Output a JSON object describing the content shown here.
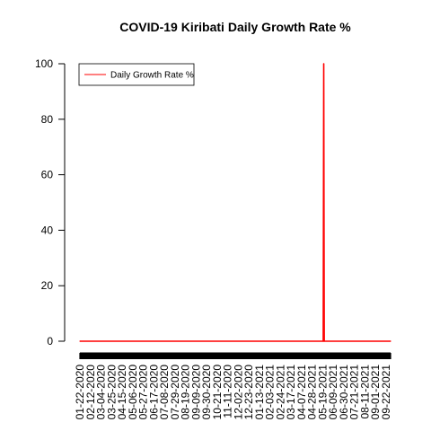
{
  "chart_data": {
    "type": "line",
    "title": "COVID-19 Kiribati Daily Growth Rate %",
    "xlabel": "",
    "ylabel": "",
    "ylim": [
      0,
      100
    ],
    "y_ticks": [
      0,
      20,
      40,
      60,
      80,
      100
    ],
    "x_range": [
      "2020-01-22",
      "2021-10-01"
    ],
    "x_tick_labels": [
      "01-22-2020",
      "02-12-2020",
      "03-04-2020",
      "03-25-2020",
      "04-15-2020",
      "05-06-2020",
      "05-27-2020",
      "06-17-2020",
      "07-08-2020",
      "07-29-2020",
      "08-19-2020",
      "09-09-2020",
      "09-30-2020",
      "10-21-2020",
      "11-11-2020",
      "12-02-2020",
      "12-23-2020",
      "01-13-2021",
      "02-03-2021",
      "02-24-2021",
      "03-17-2021",
      "04-07-2021",
      "04-28-2021",
      "05-19-2021",
      "06-09-2021",
      "06-30-2021",
      "07-21-2021",
      "08-11-2021",
      "09-01-2021",
      "09-22-2021"
    ],
    "grid": false,
    "legend_position": "top-left",
    "colors": {
      "series": "#ff0000",
      "axis": "#000000"
    },
    "series": [
      {
        "name": "Daily Growth Rate %",
        "points": [
          {
            "x": "2020-01-22",
            "y": 0
          },
          {
            "x": "2021-05-20",
            "y": 0
          },
          {
            "x": "2021-05-21",
            "y": 100
          },
          {
            "x": "2021-05-22",
            "y": 0
          },
          {
            "x": "2021-10-01",
            "y": 0
          }
        ]
      }
    ]
  }
}
